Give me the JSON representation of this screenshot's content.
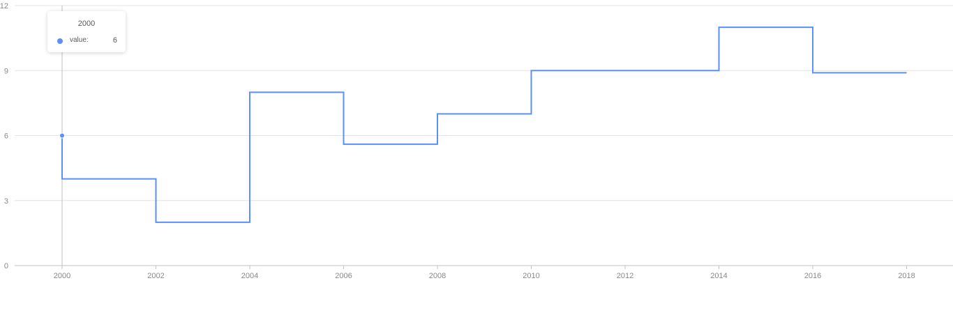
{
  "chart_data": {
    "type": "line",
    "line_shape": "step",
    "x": [
      "2000",
      "2002",
      "2004",
      "2006",
      "2008",
      "2010",
      "2012",
      "2014",
      "2016",
      "2018"
    ],
    "series": [
      {
        "values": [
          6,
          4,
          2,
          8,
          5.6,
          7,
          9,
          9,
          11,
          8.9
        ]
      }
    ],
    "x_tick_labels": [
      "2000",
      "2002",
      "2004",
      "2006",
      "2008",
      "2010",
      "2012",
      "2014",
      "2016",
      "2018"
    ],
    "y_tick_labels": [
      "0",
      "3",
      "6",
      "9",
      "12"
    ],
    "ylim": [
      0,
      12
    ],
    "grid": "horizontal",
    "legend": "none",
    "line_color": "#5b8ff9"
  },
  "tooltip": {
    "title": "2000",
    "name": "value:",
    "value": "6",
    "active_index": 0
  },
  "colors": {
    "series": "#5b8ff9",
    "grid": "#e3e3e3",
    "axis": "#c2c2c2",
    "tick_text": "#888888"
  }
}
